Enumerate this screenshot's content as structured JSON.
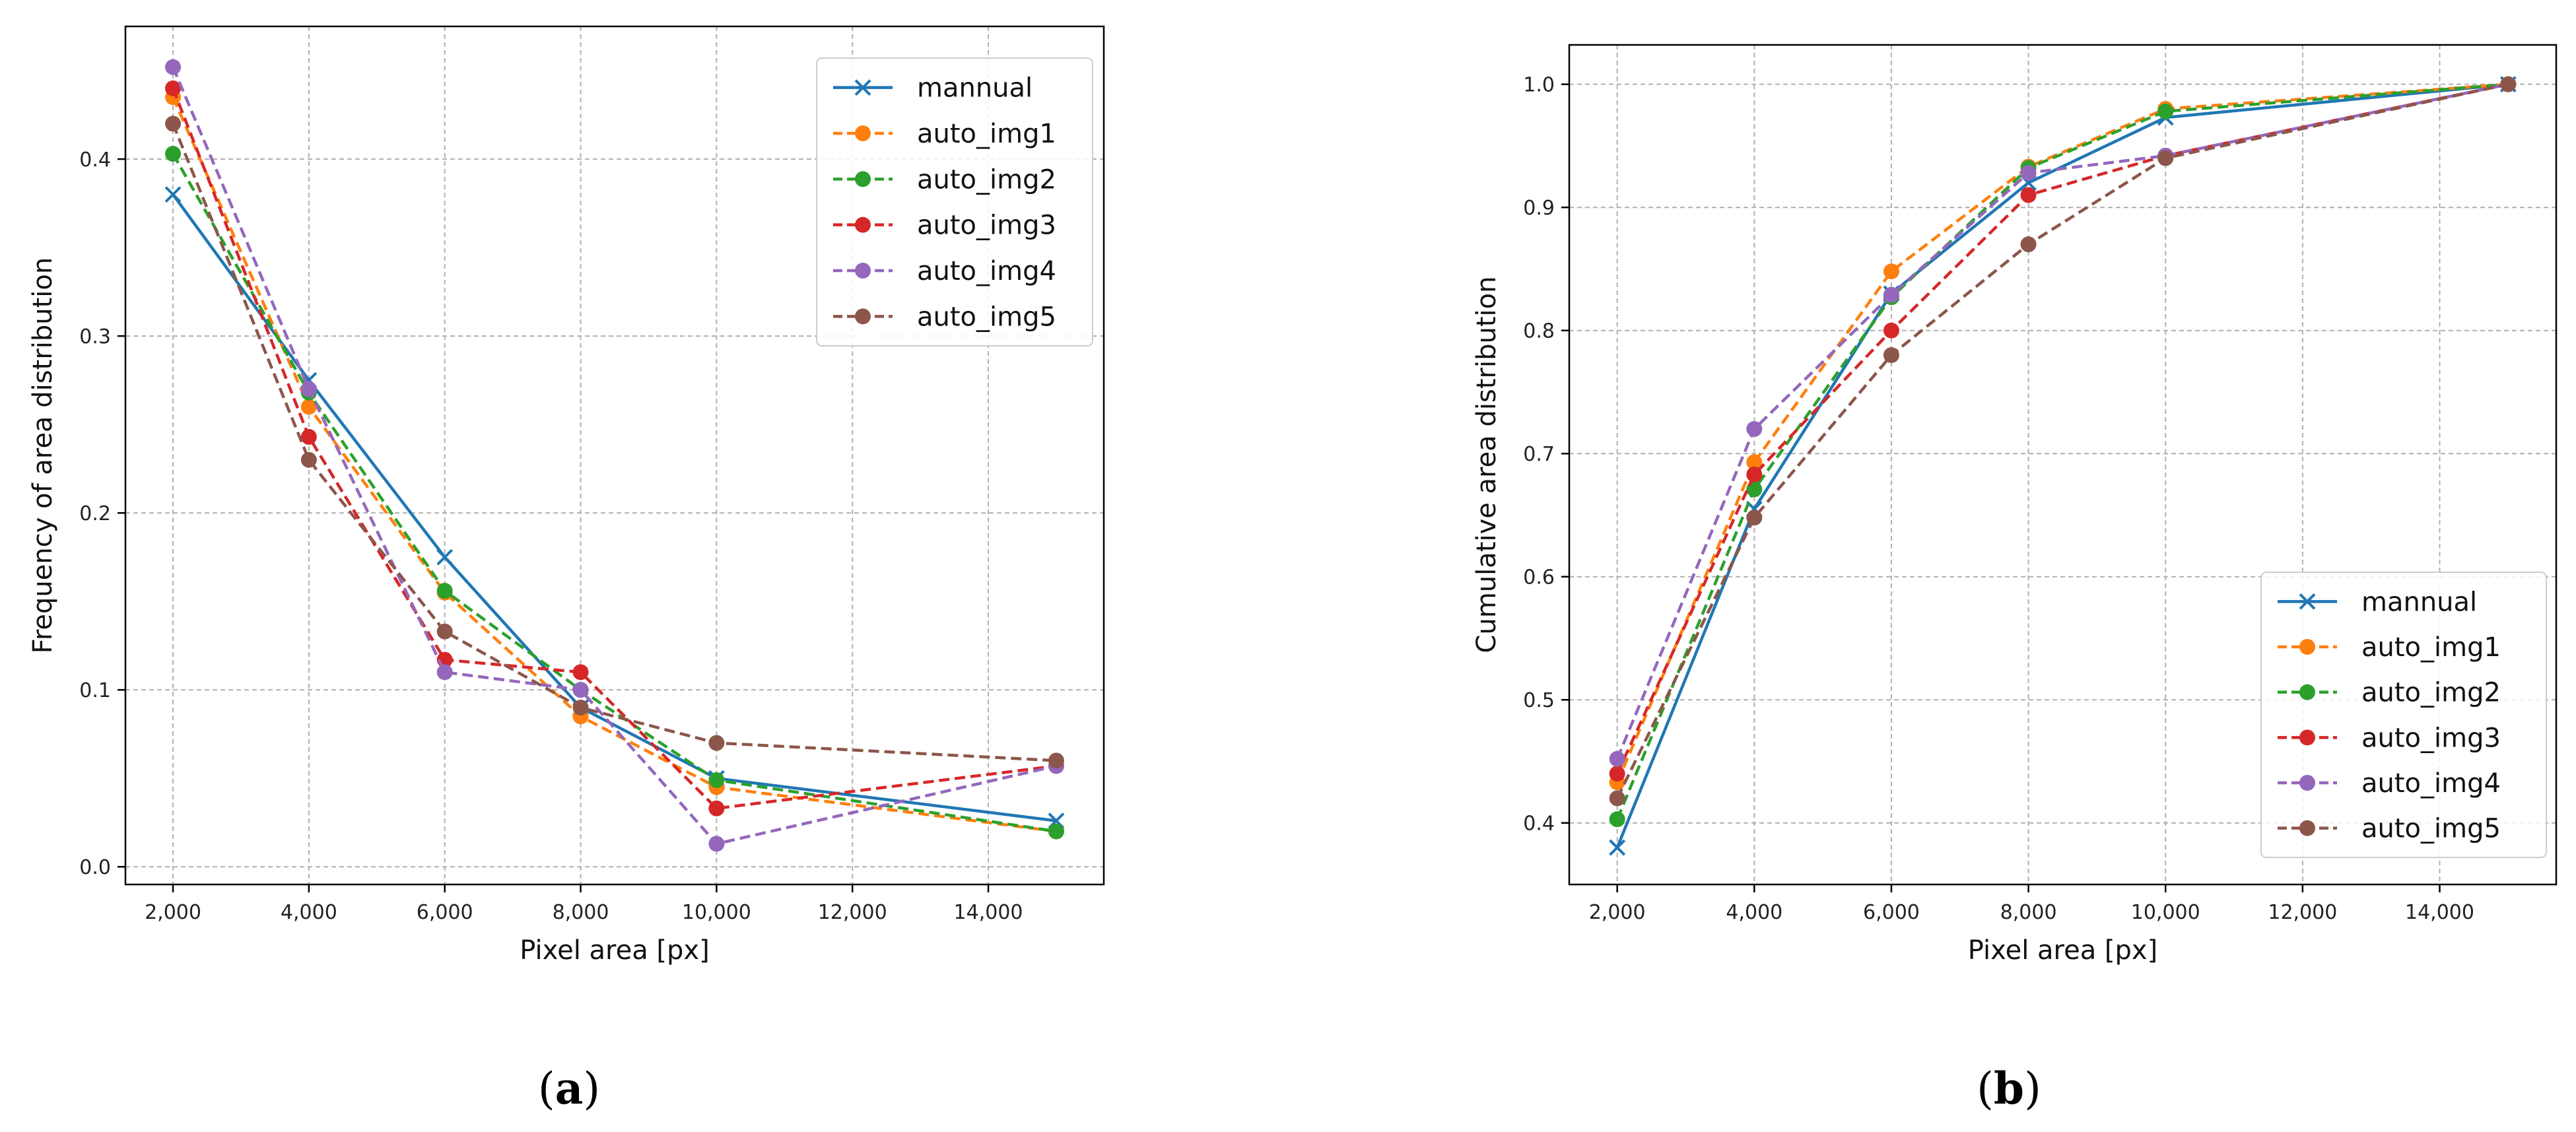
{
  "chart_data": [
    {
      "type": "line",
      "panel_label": "a",
      "title": "",
      "xlabel": "Pixel area [px]",
      "ylabel": "Frequency of area distribution",
      "xlim": [
        1300,
        15700
      ],
      "ylim": [
        -0.01,
        0.475
      ],
      "xticks": [
        2000,
        4000,
        6000,
        8000,
        10000,
        12000,
        14000
      ],
      "xtick_labels": [
        "2,000",
        "4,000",
        "6,000",
        "8,000",
        "10,000",
        "12,000",
        "14,000"
      ],
      "yticks": [
        0.0,
        0.1,
        0.2,
        0.3,
        0.4
      ],
      "ytick_labels": [
        "0.0",
        "0.1",
        "0.2",
        "0.3",
        "0.4"
      ],
      "grid": true,
      "legend_position": "top-right",
      "x": [
        2000,
        4000,
        6000,
        8000,
        10000,
        15000
      ],
      "series": [
        {
          "name": "mannual",
          "color": "#1f77b4",
          "style": "solid",
          "marker": "x",
          "values": [
            0.38,
            0.275,
            0.175,
            0.09,
            0.05,
            0.026
          ]
        },
        {
          "name": "auto_img1",
          "color": "#ff7f0e",
          "style": "dashed",
          "marker": "o",
          "values": [
            0.435,
            0.26,
            0.155,
            0.085,
            0.045,
            0.02
          ]
        },
        {
          "name": "auto_img2",
          "color": "#2ca02c",
          "style": "dashed",
          "marker": "o",
          "values": [
            0.403,
            0.268,
            0.156,
            0.1,
            0.049,
            0.02
          ]
        },
        {
          "name": "auto_img3",
          "color": "#d62728",
          "style": "dashed",
          "marker": "o",
          "values": [
            0.44,
            0.243,
            0.117,
            0.11,
            0.033,
            0.057
          ]
        },
        {
          "name": "auto_img4",
          "color": "#9467bd",
          "style": "dashed",
          "marker": "o",
          "values": [
            0.452,
            0.27,
            0.11,
            0.1,
            0.013,
            0.057
          ]
        },
        {
          "name": "auto_img5",
          "color": "#8c564b",
          "style": "dashed",
          "marker": "o",
          "values": [
            0.42,
            0.23,
            0.133,
            0.09,
            0.07,
            0.06
          ]
        }
      ]
    },
    {
      "type": "line",
      "panel_label": "b",
      "title": "",
      "xlabel": "Pixel area [px]",
      "ylabel": "Cumulative area distribution",
      "xlim": [
        1300,
        15700
      ],
      "ylim": [
        0.35,
        1.032
      ],
      "xticks": [
        2000,
        4000,
        6000,
        8000,
        10000,
        12000,
        14000
      ],
      "xtick_labels": [
        "2,000",
        "4,000",
        "6,000",
        "8,000",
        "10,000",
        "12,000",
        "14,000"
      ],
      "yticks": [
        0.4,
        0.5,
        0.6,
        0.7,
        0.8,
        0.9,
        1.0
      ],
      "ytick_labels": [
        "0.4",
        "0.5",
        "0.6",
        "0.7",
        "0.8",
        "0.9",
        "1.0"
      ],
      "grid": true,
      "legend_position": "bottom-right",
      "x": [
        2000,
        4000,
        6000,
        8000,
        10000,
        15000
      ],
      "series": [
        {
          "name": "mannual",
          "color": "#1f77b4",
          "style": "solid",
          "marker": "x",
          "values": [
            0.38,
            0.655,
            0.83,
            0.92,
            0.973,
            1.0
          ]
        },
        {
          "name": "auto_img1",
          "color": "#ff7f0e",
          "style": "dashed",
          "marker": "o",
          "values": [
            0.433,
            0.693,
            0.848,
            0.933,
            0.98,
            1.0
          ]
        },
        {
          "name": "auto_img2",
          "color": "#2ca02c",
          "style": "dashed",
          "marker": "o",
          "values": [
            0.403,
            0.671,
            0.827,
            0.932,
            0.978,
            1.0
          ]
        },
        {
          "name": "auto_img3",
          "color": "#d62728",
          "style": "dashed",
          "marker": "o",
          "values": [
            0.44,
            0.683,
            0.8,
            0.91,
            0.942,
            1.0
          ]
        },
        {
          "name": "auto_img4",
          "color": "#9467bd",
          "style": "dashed",
          "marker": "o",
          "values": [
            0.452,
            0.72,
            0.829,
            0.928,
            0.942,
            1.0
          ]
        },
        {
          "name": "auto_img5",
          "color": "#8c564b",
          "style": "dashed",
          "marker": "o",
          "values": [
            0.42,
            0.648,
            0.78,
            0.87,
            0.94,
            1.0
          ]
        }
      ]
    }
  ]
}
